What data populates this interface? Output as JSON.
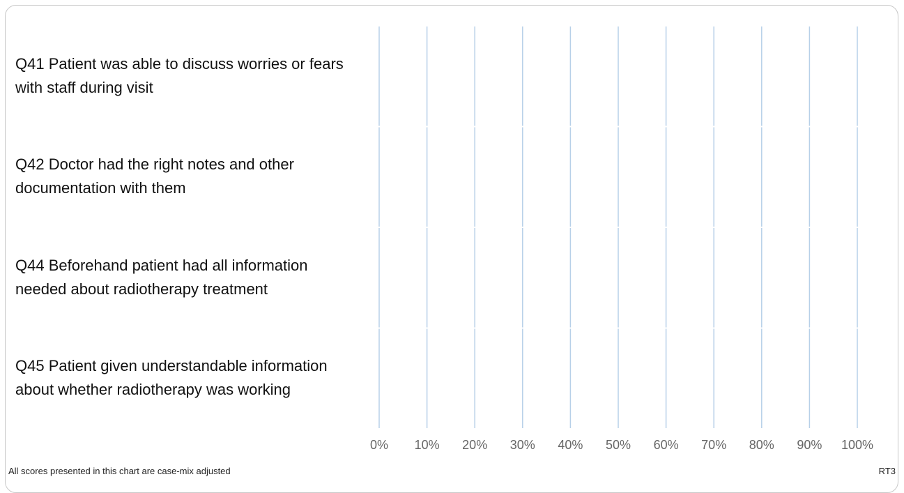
{
  "chart_data": {
    "type": "bar",
    "orientation": "horizontal",
    "categories": [
      "Q41 Patient was able to discuss worries or fears with staff during visit",
      "Q42 Doctor had the right notes and other documentation with them",
      "Q44 Beforehand patient had all information needed about radiotherapy treatment",
      "Q45 Patient given understandable information about whether radiotherapy was working"
    ],
    "xlim": [
      0,
      100
    ],
    "xticks": [
      {
        "value": 0,
        "label": "0%"
      },
      {
        "value": 10,
        "label": "10%"
      },
      {
        "value": 20,
        "label": "20%"
      },
      {
        "value": 30,
        "label": "30%"
      },
      {
        "value": 40,
        "label": "40%"
      },
      {
        "value": 50,
        "label": "50%"
      },
      {
        "value": 60,
        "label": "60%"
      },
      {
        "value": 70,
        "label": "70%"
      },
      {
        "value": 80,
        "label": "80%"
      },
      {
        "value": 90,
        "label": "90%"
      },
      {
        "value": 100,
        "label": "100%"
      }
    ],
    "grid": true,
    "grid_color": "#b7d0e8",
    "footnote": "All scores presented in this chart are case-mix adjusted",
    "code": "RT3"
  }
}
